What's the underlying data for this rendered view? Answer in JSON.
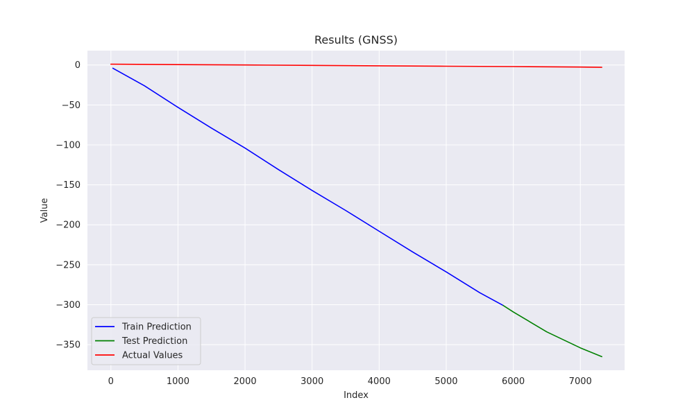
{
  "chart_data": {
    "type": "line",
    "title": "Results (GNSS)",
    "xlabel": "Index",
    "ylabel": "Value",
    "xlim": [
      -350,
      7660
    ],
    "ylim": [
      -382,
      18
    ],
    "xticks": [
      0,
      1000,
      2000,
      3000,
      4000,
      5000,
      6000,
      7000
    ],
    "yticks": [
      0,
      -50,
      -100,
      -150,
      -200,
      -250,
      -300,
      -350
    ],
    "grid": true,
    "background": "#eaeaf2",
    "legend_position": "lower-left",
    "series": [
      {
        "name": "Train Prediction",
        "color": "#0000ff",
        "x": [
          30,
          500,
          1000,
          1500,
          2000,
          2500,
          3000,
          3500,
          4000,
          4500,
          5000,
          5500,
          5850
        ],
        "y": [
          -4,
          -26,
          -53,
          -79,
          -104,
          -131,
          -157,
          -182,
          -208,
          -234,
          -259,
          -285,
          -301
        ]
      },
      {
        "name": "Test Prediction",
        "color": "#008000",
        "x": [
          5850,
          6000,
          6500,
          7000,
          7320
        ],
        "y": [
          -301,
          -309,
          -334,
          -354,
          -365
        ]
      },
      {
        "name": "Actual Values",
        "color": "#ff0000",
        "x": [
          0,
          1000,
          2000,
          3000,
          4000,
          5000,
          6000,
          7000,
          7320
        ],
        "y": [
          1,
          0.5,
          0,
          -0.5,
          -1,
          -1.5,
          -2,
          -2.6,
          -2.9
        ]
      }
    ]
  }
}
